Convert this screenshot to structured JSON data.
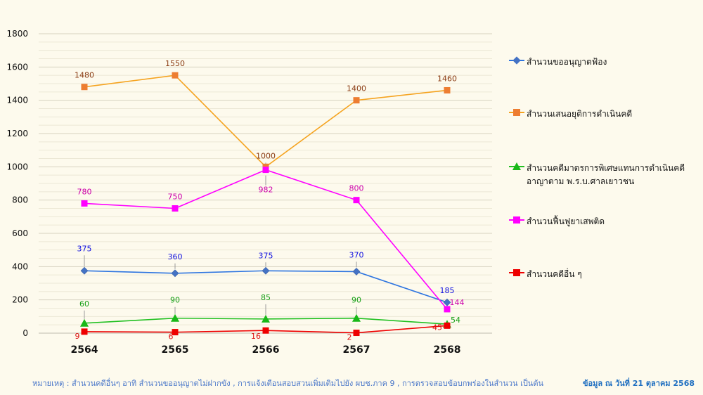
{
  "chart_data": {
    "type": "line",
    "title": "",
    "xlabel": "",
    "ylabel": "",
    "categories": [
      "2564",
      "2565",
      "2566",
      "2567",
      "2568"
    ],
    "ylim": [
      0,
      1800
    ],
    "yticks": [
      0,
      200,
      400,
      600,
      800,
      1000,
      1200,
      1400,
      1600,
      1800
    ],
    "grid": true,
    "legend_position": "right",
    "series": [
      {
        "name": "สำนวนขออนุญาตฟ้อง",
        "values": [
          375,
          360,
          375,
          370,
          185
        ],
        "labels": [
          "375",
          "360",
          "375",
          "370",
          "185"
        ],
        "color": "#4472c4",
        "line_color": "#2e75e0",
        "label_color": "#1010e0",
        "marker": "diamond"
      },
      {
        "name": "สำนวนเสนอยุติการดำเนินคดี",
        "values": [
          1480,
          1550,
          1000,
          1400,
          1460
        ],
        "labels": [
          "1480",
          "1550",
          "1000",
          "1400",
          "1460"
        ],
        "color": "#ed7d31",
        "line_color": "#f5a31f",
        "label_color": "#8a3b12",
        "marker": "square"
      },
      {
        "name": "สำนวนคดีมาตรการพิเศษแทนการดำเนินคดี อาญาตาม พ.ร.บ.ศาลเยาวชน",
        "values": [
          60,
          90,
          85,
          90,
          54
        ],
        "labels": [
          "60",
          "90",
          "85",
          "90",
          "54"
        ],
        "color": "#18b818",
        "line_color": "#22c022",
        "label_color": "#18a018",
        "marker": "triangle"
      },
      {
        "name": "สำนวนฟื้นฟูยาเสพติด",
        "values": [
          780,
          750,
          982,
          800,
          144
        ],
        "labels": [
          "780",
          "750",
          "982",
          "800",
          "144"
        ],
        "color": "#ff00ff",
        "line_color": "#ff00ff",
        "label_color": "#cc00aa",
        "marker": "square"
      },
      {
        "name": "สำนวนคดีอื่น ๆ",
        "values": [
          9,
          6,
          16,
          2,
          45
        ],
        "labels": [
          "9",
          "6",
          "16",
          "2",
          "45"
        ],
        "color": "#ee0000",
        "line_color": "#ee0000",
        "label_color": "#dd1111",
        "marker": "square"
      }
    ]
  },
  "footnote": "หมายเหตุ : สำนวนคดีอื่นๆ อาทิ สำนวนขออนุญาตไม่ฝากขัง , การแจ้งเตือนสอบสวนเพิ่มเติมไปยัง ผบช.ภาค 9 , การตรวจสอบข้อบกพร่องในสำนวน เป็นต้น",
  "data_date": "ข้อมูล ณ วันที่ 21 ตุลาคม 2568"
}
